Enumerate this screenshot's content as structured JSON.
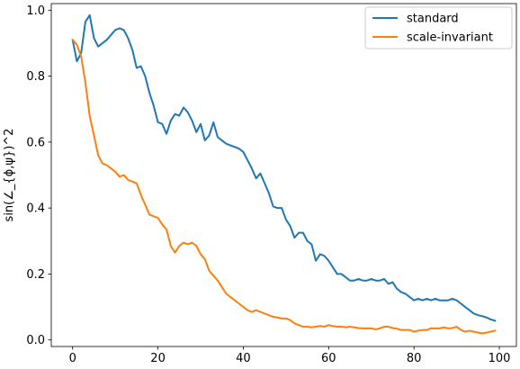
{
  "chart_data": {
    "type": "line",
    "title": "",
    "xlabel": "",
    "ylabel": "sin(∠_{ϕ,ψ})^2",
    "xlim": [
      -5,
      104
    ],
    "ylim": [
      -0.02,
      1.02
    ],
    "xticks": [
      0,
      20,
      40,
      60,
      80,
      100
    ],
    "yticks": [
      0.0,
      0.2,
      0.4,
      0.6,
      0.8,
      1.0
    ],
    "xtick_labels": [
      "0",
      "20",
      "40",
      "60",
      "80",
      "100"
    ],
    "ytick_labels": [
      "0.0",
      "0.2",
      "0.4",
      "0.6",
      "0.8",
      "1.0"
    ],
    "legend_position": "top-right",
    "grid": false,
    "series": [
      {
        "name": "standard",
        "color": "#1f77b4",
        "x": [
          0,
          1,
          2,
          3,
          4,
          5,
          6,
          7,
          8,
          9,
          10,
          11,
          12,
          13,
          14,
          15,
          16,
          17,
          18,
          19,
          20,
          21,
          22,
          23,
          24,
          25,
          26,
          27,
          28,
          29,
          30,
          31,
          32,
          33,
          34,
          35,
          36,
          37,
          38,
          39,
          40,
          41,
          42,
          43,
          44,
          45,
          46,
          47,
          48,
          49,
          50,
          51,
          52,
          53,
          54,
          55,
          56,
          57,
          58,
          59,
          60,
          61,
          62,
          63,
          64,
          65,
          66,
          67,
          68,
          69,
          70,
          71,
          72,
          73,
          74,
          75,
          76,
          77,
          78,
          79,
          80,
          81,
          82,
          83,
          84,
          85,
          86,
          87,
          88,
          89,
          90,
          91,
          92,
          93,
          94,
          95,
          96,
          97,
          98,
          99
        ],
        "y": [
          0.91,
          0.845,
          0.87,
          0.965,
          0.985,
          0.915,
          0.89,
          0.9,
          0.91,
          0.925,
          0.94,
          0.945,
          0.94,
          0.915,
          0.88,
          0.825,
          0.83,
          0.8,
          0.75,
          0.71,
          0.66,
          0.655,
          0.625,
          0.665,
          0.685,
          0.68,
          0.705,
          0.69,
          0.665,
          0.63,
          0.655,
          0.605,
          0.62,
          0.66,
          0.615,
          0.605,
          0.595,
          0.59,
          0.585,
          0.58,
          0.57,
          0.545,
          0.52,
          0.49,
          0.505,
          0.475,
          0.445,
          0.405,
          0.4,
          0.4,
          0.365,
          0.345,
          0.31,
          0.325,
          0.325,
          0.3,
          0.29,
          0.24,
          0.26,
          0.255,
          0.24,
          0.22,
          0.2,
          0.2,
          0.19,
          0.18,
          0.18,
          0.185,
          0.18,
          0.18,
          0.185,
          0.18,
          0.18,
          0.185,
          0.17,
          0.175,
          0.155,
          0.145,
          0.14,
          0.13,
          0.12,
          0.125,
          0.12,
          0.125,
          0.12,
          0.125,
          0.12,
          0.12,
          0.12,
          0.125,
          0.12,
          0.11,
          0.1,
          0.09,
          0.08,
          0.075,
          0.072,
          0.068,
          0.062,
          0.058
        ]
      },
      {
        "name": "scale-invariant",
        "color": "#ff7f0e",
        "x": [
          0,
          1,
          2,
          3,
          4,
          5,
          6,
          7,
          8,
          9,
          10,
          11,
          12,
          13,
          14,
          15,
          16,
          17,
          18,
          19,
          20,
          21,
          22,
          23,
          24,
          25,
          26,
          27,
          28,
          29,
          30,
          31,
          32,
          33,
          34,
          35,
          36,
          37,
          38,
          39,
          40,
          41,
          42,
          43,
          44,
          45,
          46,
          47,
          48,
          49,
          50,
          51,
          52,
          53,
          54,
          55,
          56,
          57,
          58,
          59,
          60,
          61,
          62,
          63,
          64,
          65,
          66,
          67,
          68,
          69,
          70,
          71,
          72,
          73,
          74,
          75,
          76,
          77,
          78,
          79,
          80,
          81,
          82,
          83,
          84,
          85,
          86,
          87,
          88,
          89,
          90,
          91,
          92,
          93,
          94,
          95,
          96,
          97,
          98,
          99
        ],
        "y": [
          0.91,
          0.895,
          0.86,
          0.78,
          0.68,
          0.62,
          0.56,
          0.535,
          0.53,
          0.52,
          0.51,
          0.495,
          0.5,
          0.485,
          0.48,
          0.475,
          0.44,
          0.41,
          0.38,
          0.375,
          0.37,
          0.35,
          0.335,
          0.285,
          0.265,
          0.285,
          0.295,
          0.29,
          0.295,
          0.285,
          0.26,
          0.245,
          0.21,
          0.195,
          0.18,
          0.16,
          0.14,
          0.13,
          0.12,
          0.11,
          0.1,
          0.09,
          0.085,
          0.09,
          0.085,
          0.08,
          0.075,
          0.07,
          0.068,
          0.065,
          0.065,
          0.06,
          0.05,
          0.045,
          0.04,
          0.04,
          0.038,
          0.04,
          0.042,
          0.04,
          0.045,
          0.042,
          0.04,
          0.04,
          0.038,
          0.04,
          0.038,
          0.036,
          0.035,
          0.035,
          0.035,
          0.032,
          0.035,
          0.04,
          0.04,
          0.036,
          0.034,
          0.03,
          0.03,
          0.03,
          0.025,
          0.028,
          0.03,
          0.03,
          0.035,
          0.035,
          0.035,
          0.038,
          0.035,
          0.036,
          0.04,
          0.03,
          0.025,
          0.028,
          0.025,
          0.022,
          0.02,
          0.022,
          0.025,
          0.028
        ]
      }
    ]
  }
}
